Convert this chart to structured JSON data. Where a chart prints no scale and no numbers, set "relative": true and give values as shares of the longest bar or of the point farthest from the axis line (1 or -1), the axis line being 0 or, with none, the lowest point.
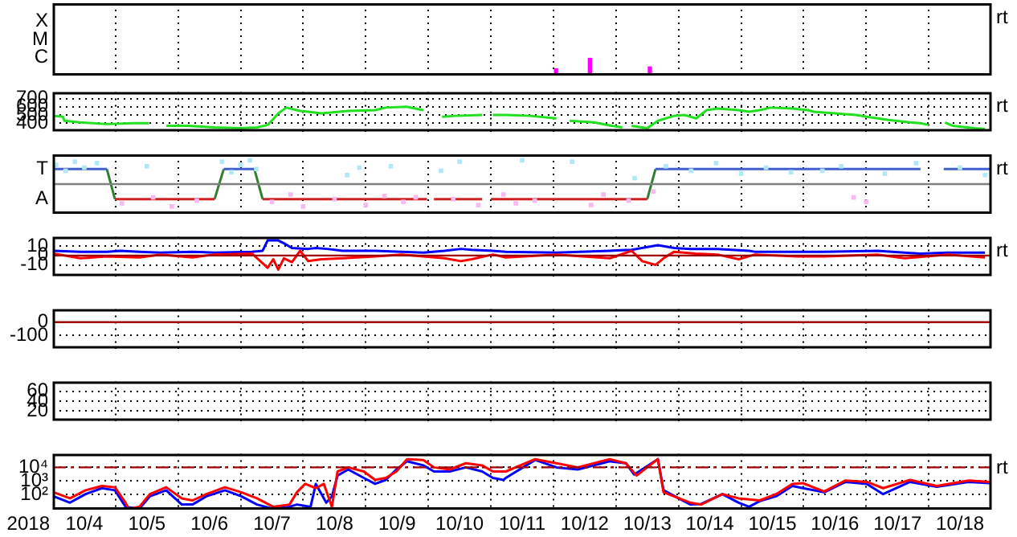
{
  "chart_data": [
    {
      "type": "bar",
      "relative": true,
      "xlim": [
        "2018-10-04",
        "2018-10-19"
      ],
      "xticks": [
        {
          "value": "2018-10-05",
          "label": null
        },
        {
          "value": "2018-10-06",
          "label": null
        },
        {
          "value": "2018-10-07",
          "label": null
        },
        {
          "value": "2018-10-08",
          "label": null
        },
        {
          "value": "2018-10-09",
          "label": null
        },
        {
          "value": "2018-10-10",
          "label": null
        },
        {
          "value": "2018-10-11",
          "label": null
        },
        {
          "value": "2018-10-12",
          "label": null
        },
        {
          "value": "2018-10-13",
          "label": null
        },
        {
          "value": "2018-10-14",
          "label": null
        },
        {
          "value": "2018-10-15",
          "label": null
        },
        {
          "value": "2018-10-16",
          "label": null
        },
        {
          "value": "2018-10-17",
          "label": null
        },
        {
          "value": "2018-10-18",
          "label": null
        }
      ],
      "tick_labels": "y",
      "grid": "x",
      "annotations": [
        "X",
        "M",
        "C",
        "rt"
      ],
      "series": [
        {
          "color": "#ff00ff",
          "x": [
            "2018-10-12T01:00",
            "2018-10-12T14:00",
            "2018-10-13T13:00"
          ],
          "values": [
            0.39,
            1,
            0.5
          ]
        }
      ]
    },
    {
      "type": "line",
      "xlim": [
        "2018-10-04",
        "2018-10-19"
      ],
      "xticks": [
        {
          "value": "2018-10-05",
          "label": null
        },
        {
          "value": "2018-10-06",
          "label": null
        },
        {
          "value": "2018-10-07",
          "label": null
        },
        {
          "value": "2018-10-08",
          "label": null
        },
        {
          "value": "2018-10-09",
          "label": null
        },
        {
          "value": "2018-10-10",
          "label": null
        },
        {
          "value": "2018-10-11",
          "label": null
        },
        {
          "value": "2018-10-12",
          "label": null
        },
        {
          "value": "2018-10-13",
          "label": null
        },
        {
          "value": "2018-10-14",
          "label": null
        },
        {
          "value": "2018-10-15",
          "label": null
        },
        {
          "value": "2018-10-16",
          "label": null
        },
        {
          "value": "2018-10-17",
          "label": null
        },
        {
          "value": "2018-10-18",
          "label": null
        }
      ],
      "ylim": [
        300,
        780
      ],
      "yticks": [
        400,
        500,
        600,
        700
      ],
      "tick_labels": "y",
      "grid": true,
      "annotations": [
        "rt"
      ],
      "series": [
        {
          "color": "#20e020",
          "x": [
            "2018-10-04T00:15",
            "2018-10-04T03:50",
            "2018-10-04T04:20",
            "2018-10-04T10:30",
            "2018-10-04T20:40",
            "2018-10-05T07:00",
            "2018-10-05T12:45",
            "2018-10-05T16:00",
            "2018-10-05T19:30",
            "2018-10-06T03:40",
            "2018-10-06T14:00",
            "2018-10-07T00:15",
            "2018-10-07T06:15",
            "2018-10-07T10:20",
            "2018-10-07T12:30",
            "2018-10-07T14:25",
            "2018-10-07T17:30",
            "2018-10-07T22:50",
            "2018-10-08T01:55",
            "2018-10-08T07:00",
            "2018-10-08T17:15",
            "2018-10-09T03:35",
            "2018-10-09T07:40",
            "2018-10-09T15:50",
            "2018-10-09T22:05",
            "2018-10-10T01:40",
            "2018-10-10T05:15",
            "2018-10-10T10:20",
            "2018-10-10T20:40",
            "2018-10-10T23:45",
            "2018-10-11T00:45",
            "2018-10-11T05:45",
            "2018-10-11T14:55",
            "2018-10-12T01:10",
            "2018-10-12T03:35",
            "2018-10-12T06:15",
            "2018-10-12T15:35",
            "2018-10-12T22:20",
            "2018-10-13T02:25",
            "2018-10-13T04:20",
            "2018-10-13T06:00",
            "2018-10-13T12:00",
            "2018-10-13T16:05",
            "2018-10-13T22:20",
            "2018-10-14T02:25",
            "2018-10-14T06:45",
            "2018-10-14T10:50",
            "2018-10-14T14:55",
            "2018-10-14T23:05",
            "2018-10-15T03:05",
            "2018-10-15T07:10",
            "2018-10-15T11:15",
            "2018-10-15T19:40",
            "2018-10-16T01:40",
            "2018-10-16T03:50",
            "2018-10-16T12:00",
            "2018-10-16T20:10",
            "2018-10-17T00:15",
            "2018-10-17T08:40",
            "2018-10-17T16:50",
            "2018-10-17T20:50",
            "2018-10-18T00:00",
            "2018-10-18T03:05",
            "2018-10-18T06:15",
            "2018-10-18T09:10",
            "2018-10-18T17:30",
            "2018-10-18T21:35"
          ],
          "values": [
            490,
            480,
            430,
            410,
            390,
            400,
            400,
            null,
            370,
            370,
            350,
            340,
            350,
            380,
            450,
            520,
            590,
            550,
            540,
            520,
            550,
            560,
            590,
            600,
            560,
            null,
            480,
            490,
            500,
            null,
            500,
            500,
            490,
            460,
            null,
            430,
            410,
            370,
            350,
            null,
            370,
            340,
            430,
            490,
            500,
            460,
            560,
            580,
            560,
            540,
            560,
            590,
            580,
            560,
            540,
            520,
            500,
            480,
            440,
            410,
            400,
            380,
            null,
            410,
            370,
            340,
            330
          ]
        }
      ]
    },
    {
      "type": "line",
      "relative": true,
      "xlim": [
        "2018-10-04",
        "2018-10-19"
      ],
      "xticks": [
        {
          "value": "2018-10-05",
          "label": null
        },
        {
          "value": "2018-10-06",
          "label": null
        },
        {
          "value": "2018-10-07",
          "label": null
        },
        {
          "value": "2018-10-08",
          "label": null
        },
        {
          "value": "2018-10-09",
          "label": null
        },
        {
          "value": "2018-10-10",
          "label": null
        },
        {
          "value": "2018-10-11",
          "label": null
        },
        {
          "value": "2018-10-12",
          "label": null
        },
        {
          "value": "2018-10-13",
          "label": null
        },
        {
          "value": "2018-10-14",
          "label": null
        },
        {
          "value": "2018-10-15",
          "label": null
        },
        {
          "value": "2018-10-16",
          "label": null
        },
        {
          "value": "2018-10-17",
          "label": null
        },
        {
          "value": "2018-10-18",
          "label": null
        }
      ],
      "tick_labels": "y",
      "grid": "x",
      "annotations": [
        "T",
        "A",
        "rt"
      ],
      "ref_lines": [
        {
          "axis": "y",
          "value": 0,
          "color": "#808080"
        }
      ],
      "series": [
        {
          "type": "scatter",
          "color": "#b0e8f8",
          "x": [
            "2018-10-04T01:10",
            "2018-10-04T04:50",
            "2018-10-04T08:25",
            "2018-10-04T12:00",
            "2018-10-04T16:50",
            "2018-10-05T12:00",
            "2018-10-06T16:50",
            "2018-10-06T20:25",
            "2018-10-07T00:00",
            "2018-10-07T03:35",
            "2018-10-07T06:00",
            "2018-10-08T16:50",
            "2018-10-08T21:35",
            "2018-10-09T09:35",
            "2018-10-10T04:50",
            "2018-10-10T12:00",
            "2018-10-11T12:00",
            "2018-10-12T07:10",
            "2018-10-13T07:10",
            "2018-10-13T19:10",
            "2018-10-14T04:50",
            "2018-10-14T14:25",
            "2018-10-15T00:00",
            "2018-10-15T09:35",
            "2018-10-15T19:10",
            "2018-10-16T07:10",
            "2018-10-16T14:25",
            "2018-10-17T07:10",
            "2018-10-17T19:10",
            "2018-10-18T12:00",
            "2018-10-18T21:35"
          ],
          "values": [
            0.81,
            0.56,
            0.94,
            0.69,
            0.88,
            0.75,
            0.94,
            0.5,
            0.81,
            1,
            0.63,
            0.38,
            0.69,
            0.75,
            0.56,
            0.94,
            1,
            0.94,
            0.25,
            0.75,
            0.56,
            0.88,
            0.44,
            0.69,
            0.5,
            0.56,
            0.75,
            0.44,
            0.88,
            0.69,
            0.38
          ]
        },
        {
          "type": "scatter",
          "color": "#f8b8f0",
          "x": [
            "2018-10-05T02:25",
            "2018-10-05T14:25",
            "2018-10-05T21:35",
            "2018-10-06T07:10",
            "2018-10-07T12:00",
            "2018-10-07T19:10",
            "2018-10-08T00:00",
            "2018-10-08T12:00",
            "2018-10-09T00:00",
            "2018-10-09T07:10",
            "2018-10-09T14:25",
            "2018-10-09T19:10",
            "2018-10-10T09:35",
            "2018-10-10T19:10",
            "2018-10-11T04:50",
            "2018-10-11T09:35",
            "2018-10-11T16:50",
            "2018-10-12T14:25",
            "2018-10-12T19:10",
            "2018-10-13T04:50",
            "2018-10-13T14:25",
            "2018-10-16T19:10",
            "2018-10-17T00:00"
          ],
          "values": [
            -0.81,
            -0.56,
            -0.94,
            -0.69,
            -0.75,
            -0.44,
            -0.94,
            -0.63,
            -0.88,
            -0.5,
            -0.75,
            -0.56,
            -0.63,
            -0.88,
            -0.44,
            -0.81,
            -0.69,
            -0.88,
            -0.44,
            -0.69,
            -0.31,
            -0.56,
            -0.75
          ]
        },
        {
          "color": "#4060d0",
          "x": [
            "2018-10-04T00:00",
            "2018-10-04T20:40",
            "2018-10-04T21:35",
            "2018-10-06T17:30",
            "2018-10-07T05:15",
            "2018-10-07T07:10",
            "2018-10-13T15:10",
            "2018-10-17T20:50",
            "2018-10-18T00:00",
            "2018-10-18T05:45",
            "2018-10-18T23:30"
          ],
          "values": [
            0.63,
            0.63,
            null,
            0.63,
            0.63,
            null,
            0.63,
            0.63,
            null,
            0.63,
            0.63
          ]
        },
        {
          "color": "#d02020",
          "x": [
            "2018-10-04T23:45",
            "2018-10-06T14:00",
            "2018-10-06T14:25",
            "2018-10-07T08:25",
            "2018-10-09T23:30",
            "2018-10-10T00:00",
            "2018-10-10T02:10",
            "2018-10-10T20:40",
            "2018-10-10T22:50",
            "2018-10-11T00:00",
            "2018-10-13T12:00"
          ],
          "values": [
            -0.63,
            -0.63,
            null,
            -0.63,
            -0.63,
            null,
            -0.63,
            -0.63,
            null,
            -0.63,
            -0.63
          ]
        },
        {
          "color": "#308030",
          "x": [
            "2018-10-04T20:40",
            "2018-10-04T23:45",
            "2018-10-05T00:00",
            "2018-10-06T14:00",
            "2018-10-06T17:30",
            "2018-10-06T19:10",
            "2018-10-07T05:15",
            "2018-10-07T08:25",
            "2018-10-07T09:35",
            "2018-10-13T12:00",
            "2018-10-13T15:10"
          ],
          "values": [
            0.63,
            -0.63,
            null,
            -0.63,
            0.63,
            null,
            0.63,
            -0.63,
            null,
            -0.63,
            0.63
          ]
        }
      ]
    },
    {
      "type": "line",
      "xlim": [
        "2018-10-04",
        "2018-10-19"
      ],
      "xticks": [
        {
          "value": "2018-10-05",
          "label": null
        },
        {
          "value": "2018-10-06",
          "label": null
        },
        {
          "value": "2018-10-07",
          "label": null
        },
        {
          "value": "2018-10-08",
          "label": null
        },
        {
          "value": "2018-10-09",
          "label": null
        },
        {
          "value": "2018-10-10",
          "label": null
        },
        {
          "value": "2018-10-11",
          "label": null
        },
        {
          "value": "2018-10-12",
          "label": null
        },
        {
          "value": "2018-10-13",
          "label": null
        },
        {
          "value": "2018-10-14",
          "label": null
        },
        {
          "value": "2018-10-15",
          "label": null
        },
        {
          "value": "2018-10-16",
          "label": null
        },
        {
          "value": "2018-10-17",
          "label": null
        },
        {
          "value": "2018-10-18",
          "label": null
        }
      ],
      "ylim": [
        -22,
        20
      ],
      "yticks": [
        10,
        0,
        -10
      ],
      "tick_labels": "y",
      "grid": true,
      "annotations": [
        "rt"
      ],
      "ref_lines": [
        {
          "axis": "y",
          "value": 0,
          "color": "#a00000"
        }
      ],
      "series": [
        {
          "color": "#ff0000",
          "x": [
            "2018-10-04T00:15",
            "2018-10-04T10:30",
            "2018-10-04T20:40",
            "2018-10-05T09:10",
            "2018-10-05T17:15",
            "2018-10-06T05:30",
            "2018-10-06T14:00",
            "2018-10-07T04:20",
            "2018-10-07T10:20",
            "2018-10-07T12:30",
            "2018-10-07T14:25",
            "2018-10-07T16:35",
            "2018-10-07T19:40",
            "2018-10-07T22:50",
            "2018-10-08T01:55",
            "2018-10-08T07:00",
            "2018-10-08T15:10",
            "2018-10-09T03:35",
            "2018-10-09T13:40",
            "2018-10-09T22:05",
            "2018-10-10T06:15",
            "2018-10-10T12:30",
            "2018-10-10T16:35",
            "2018-10-11T00:45",
            "2018-10-11T05:45",
            "2018-10-12T01:10",
            "2018-10-12T21:35",
            "2018-10-13T06:00",
            "2018-10-13T10:05",
            "2018-10-13T15:10",
            "2018-10-13T18:15",
            "2018-10-13T22:20",
            "2018-10-14T06:30",
            "2018-10-14T14:55",
            "2018-10-14T23:05",
            "2018-10-15T05:15",
            "2018-10-15T21:35",
            "2018-10-16T07:55",
            "2018-10-17T04:20",
            "2018-10-17T14:40",
            "2018-10-18T07:10",
            "2018-10-18T21:35"
          ],
          "values": [
            2,
            -3,
            -1,
            -2,
            1,
            -2,
            1,
            2,
            -13,
            -4,
            -15,
            -3,
            -7,
            5,
            -6,
            -4,
            -3,
            -1,
            1,
            -1,
            -3,
            -6,
            -4,
            1,
            -2,
            1,
            -3,
            5,
            -6,
            -10,
            -3,
            4,
            2,
            1,
            -4,
            1,
            -1,
            -1,
            1,
            -3,
            1,
            -2
          ]
        },
        {
          "color": "#0000ff",
          "x": [
            "2018-10-04T00:15",
            "2018-10-04T10:30",
            "2018-10-04T20:40",
            "2018-10-05T01:55",
            "2018-10-05T09:10",
            "2018-10-05T17:15",
            "2018-10-06T05:30",
            "2018-10-06T14:00",
            "2018-10-07T04:20",
            "2018-10-07T08:25",
            "2018-10-07T10:20",
            "2018-10-07T14:25",
            "2018-10-07T16:35",
            "2018-10-07T19:40",
            "2018-10-08T01:55",
            "2018-10-08T04:50",
            "2018-10-08T09:10",
            "2018-10-08T15:10",
            "2018-10-09T03:35",
            "2018-10-09T13:40",
            "2018-10-09T22:05",
            "2018-10-10T06:15",
            "2018-10-10T12:30",
            "2018-10-10T16:35",
            "2018-10-11T00:45",
            "2018-10-11T05:45",
            "2018-10-12T01:10",
            "2018-10-12T21:35",
            "2018-10-13T06:00",
            "2018-10-13T16:05",
            "2018-10-13T22:20",
            "2018-10-14T04:35",
            "2018-10-14T14:55",
            "2018-10-15T03:05",
            "2018-10-15T05:15",
            "2018-10-15T21:35",
            "2018-10-16T07:55",
            "2018-10-17T04:20",
            "2018-10-17T14:40",
            "2018-10-17T20:50",
            "2018-10-18T07:10",
            "2018-10-18T21:35"
          ],
          "values": [
            5,
            4,
            4,
            5,
            4,
            3,
            4,
            3,
            4,
            5,
            16,
            16,
            13,
            8,
            7,
            8,
            7,
            5,
            5,
            4,
            3,
            5,
            7,
            6,
            5,
            4,
            3,
            5,
            6,
            11,
            8,
            7,
            7,
            5,
            4,
            4,
            4,
            5,
            3,
            2,
            3,
            3
          ]
        }
      ]
    },
    {
      "type": "line",
      "xlim": [
        "2018-10-04",
        "2018-10-19"
      ],
      "xticks": [
        {
          "value": "2018-10-05",
          "label": null
        },
        {
          "value": "2018-10-06",
          "label": null
        },
        {
          "value": "2018-10-07",
          "label": null
        },
        {
          "value": "2018-10-08",
          "label": null
        },
        {
          "value": "2018-10-09",
          "label": null
        },
        {
          "value": "2018-10-10",
          "label": null
        },
        {
          "value": "2018-10-11",
          "label": null
        },
        {
          "value": "2018-10-12",
          "label": null
        },
        {
          "value": "2018-10-13",
          "label": null
        },
        {
          "value": "2018-10-14",
          "label": null
        },
        {
          "value": "2018-10-15",
          "label": null
        },
        {
          "value": "2018-10-16",
          "label": null
        },
        {
          "value": "2018-10-17",
          "label": null
        },
        {
          "value": "2018-10-18",
          "label": null
        }
      ],
      "ylim": [
        -200,
        100
      ],
      "yticks": [
        0,
        -100
      ],
      "tick_labels": "y",
      "grid": true,
      "ref_lines": [
        {
          "axis": "y",
          "value": 0,
          "color": "#a00000"
        }
      ]
    },
    {
      "type": "line",
      "xlim": [
        "2018-10-04",
        "2018-10-19"
      ],
      "xticks": [
        {
          "value": "2018-10-05",
          "label": null
        },
        {
          "value": "2018-10-06",
          "label": null
        },
        {
          "value": "2018-10-07",
          "label": null
        },
        {
          "value": "2018-10-08",
          "label": null
        },
        {
          "value": "2018-10-09",
          "label": null
        },
        {
          "value": "2018-10-10",
          "label": null
        },
        {
          "value": "2018-10-11",
          "label": null
        },
        {
          "value": "2018-10-12",
          "label": null
        },
        {
          "value": "2018-10-13",
          "label": null
        },
        {
          "value": "2018-10-14",
          "label": null
        },
        {
          "value": "2018-10-15",
          "label": null
        },
        {
          "value": "2018-10-16",
          "label": null
        },
        {
          "value": "2018-10-17",
          "label": null
        },
        {
          "value": "2018-10-18",
          "label": null
        }
      ],
      "ylim": [
        0,
        80
      ],
      "yticks": [
        60,
        40,
        20
      ],
      "tick_labels": "y",
      "grid": true
    },
    {
      "type": "line",
      "log": true,
      "xlabel": "2018",
      "xlim": [
        "2018-10-04",
        "2018-10-19"
      ],
      "xticks": [
        {
          "value": "2018-10-04T12:00",
          "label": "10/4"
        },
        {
          "value": "2018-10-05",
          "label": null
        },
        {
          "value": "2018-10-05T12:00",
          "label": "10/5"
        },
        {
          "value": "2018-10-06",
          "label": null
        },
        {
          "value": "2018-10-06T12:00",
          "label": "10/6"
        },
        {
          "value": "2018-10-07",
          "label": null
        },
        {
          "value": "2018-10-07T12:00",
          "label": "10/7"
        },
        {
          "value": "2018-10-08",
          "label": null
        },
        {
          "value": "2018-10-08T12:00",
          "label": "10/8"
        },
        {
          "value": "2018-10-09",
          "label": null
        },
        {
          "value": "2018-10-09T12:00",
          "label": "10/9"
        },
        {
          "value": "2018-10-10",
          "label": null
        },
        {
          "value": "2018-10-10T12:00",
          "label": "10/10"
        },
        {
          "value": "2018-10-11",
          "label": null
        },
        {
          "value": "2018-10-11T12:00",
          "label": "10/11"
        },
        {
          "value": "2018-10-12",
          "label": null
        },
        {
          "value": "2018-10-12T12:00",
          "label": "10/12"
        },
        {
          "value": "2018-10-13",
          "label": null
        },
        {
          "value": "2018-10-13T12:00",
          "label": "10/13"
        },
        {
          "value": "2018-10-14",
          "label": null
        },
        {
          "value": "2018-10-14T12:00",
          "label": "10/14"
        },
        {
          "value": "2018-10-15",
          "label": null
        },
        {
          "value": "2018-10-15T12:00",
          "label": "10/15"
        },
        {
          "value": "2018-10-16",
          "label": null
        },
        {
          "value": "2018-10-16T12:00",
          "label": "10/16"
        },
        {
          "value": "2018-10-17",
          "label": null
        },
        {
          "value": "2018-10-17T12:00",
          "label": "10/17"
        },
        {
          "value": "2018-10-18",
          "label": null
        },
        {
          "value": "2018-10-18T12:00",
          "label": "10/18"
        }
      ],
      "ylim": [
        8,
        100000
      ],
      "yticks": [
        {
          "value": 100,
          "label": "10²"
        },
        {
          "value": 1000,
          "label": "10³"
        },
        {
          "value": 10000,
          "label": "10⁴"
        }
      ],
      "grid": true,
      "annotations": [
        "rt"
      ],
      "ref_lines": [
        {
          "axis": "y",
          "value": 10000,
          "color": "#a00000",
          "line_style": "dashed"
        }
      ],
      "series": [
        {
          "color": "#ff0000",
          "x": [
            "2018-10-04T00:15",
            "2018-10-04T06:30",
            "2018-10-04T12:30",
            "2018-10-04T18:45",
            "2018-10-04T23:45",
            "2018-10-05T03:50",
            "2018-10-05T05:00",
            "2018-10-05T09:10",
            "2018-10-05T13:10",
            "2018-10-05T19:25",
            "2018-10-06T01:25",
            "2018-10-06T05:30",
            "2018-10-06T10:50",
            "2018-10-06T18:00",
            "2018-10-07T00:15",
            "2018-10-07T06:15",
            "2018-10-07T12:30",
            "2018-10-07T18:45",
            "2018-10-07T21:35",
            "2018-10-08T00:45",
            "2018-10-08T04:50",
            "2018-10-08T07:55",
            "2018-10-08T11:00",
            "2018-10-08T13:10",
            "2018-10-08T17:15",
            "2018-10-08T23:15",
            "2018-10-09T03:35",
            "2018-10-09T07:40",
            "2018-10-09T11:45",
            "2018-10-09T15:50",
            "2018-10-09T22:05",
            "2018-10-10T02:10",
            "2018-10-10T08:10",
            "2018-10-10T14:25",
            "2018-10-10T20:40",
            "2018-10-11T00:45",
            "2018-10-11T05:45",
            "2018-10-11T17:00",
            "2018-10-12T01:10",
            "2018-10-12T09:20",
            "2018-10-12T21:35",
            "2018-10-13T03:50",
            "2018-10-13T07:55",
            "2018-10-13T16:05",
            "2018-10-13T18:15",
            "2018-10-14T04:35",
            "2018-10-14T08:40",
            "2018-10-14T16:50",
            "2018-10-14T23:05",
            "2018-10-15T07:10",
            "2018-10-15T13:25",
            "2018-10-15T19:40",
            "2018-10-15T23:45",
            "2018-10-16T07:55",
            "2018-10-16T16:05",
            "2018-10-17T00:15",
            "2018-10-17T06:30",
            "2018-10-17T16:50",
            "2018-10-18T03:05",
            "2018-10-18T15:20",
            "2018-10-18T23:30"
          ],
          "values": [
            150,
            54,
            210,
            440,
            350,
            26,
            9.3,
            13,
            110,
            350,
            54,
            38,
            110,
            350,
            150,
            54,
            13,
            19,
            150,
            620,
            300,
            620,
            13,
            5000,
            10000,
            5000,
            1200,
            1700,
            5000,
            40000,
            35000,
            10000,
            7000,
            20000,
            14000,
            5000,
            5000,
            40000,
            20000,
            10000,
            40000,
            20000,
            2500,
            40000,
            150,
            26,
            19,
            110,
            54,
            38,
            110,
            620,
            700,
            170,
            1100,
            870,
            300,
            1200,
            440,
            1100,
            870
          ]
        },
        {
          "color": "#0000ff",
          "x": [
            "2018-10-04T00:15",
            "2018-10-04T06:30",
            "2018-10-04T12:30",
            "2018-10-04T18:45",
            "2018-10-04T23:45",
            "2018-10-05T03:50",
            "2018-10-05T09:10",
            "2018-10-05T13:10",
            "2018-10-05T19:25",
            "2018-10-06T01:25",
            "2018-10-06T05:30",
            "2018-10-06T10:50",
            "2018-10-06T18:00",
            "2018-10-07T00:15",
            "2018-10-07T06:15",
            "2018-10-07T12:30",
            "2018-10-07T18:45",
            "2018-10-07T21:35",
            "2018-10-08T02:50",
            "2018-10-08T04:50",
            "2018-10-08T08:50",
            "2018-10-08T11:00",
            "2018-10-08T13:10",
            "2018-10-08T17:15",
            "2018-10-08T23:15",
            "2018-10-09T03:35",
            "2018-10-09T07:40",
            "2018-10-09T11:45",
            "2018-10-09T15:50",
            "2018-10-09T22:05",
            "2018-10-10T02:10",
            "2018-10-10T08:10",
            "2018-10-10T14:25",
            "2018-10-10T20:40",
            "2018-10-11T00:45",
            "2018-10-11T04:50",
            "2018-10-11T05:45",
            "2018-10-11T17:00",
            "2018-10-12T01:10",
            "2018-10-12T09:20",
            "2018-10-12T21:35",
            "2018-10-13T03:50",
            "2018-10-13T07:00",
            "2018-10-13T16:05",
            "2018-10-13T18:15",
            "2018-10-14T04:35",
            "2018-10-14T08:40",
            "2018-10-14T16:50",
            "2018-10-14T23:05",
            "2018-10-15T03:05",
            "2018-10-15T07:10",
            "2018-10-15T13:25",
            "2018-10-15T19:40",
            "2018-10-15T23:45",
            "2018-10-16T07:55",
            "2018-10-16T16:05",
            "2018-10-17T00:15",
            "2018-10-17T06:30",
            "2018-10-17T16:50",
            "2018-10-18T03:05",
            "2018-10-18T15:20",
            "2018-10-18T23:30"
          ],
          "values": [
            76,
            26,
            110,
            300,
            210,
            13,
            9.3,
            76,
            210,
            19,
            19,
            76,
            210,
            76,
            19,
            9.3,
            13,
            19,
            13,
            620,
            26,
            76,
            2500,
            7000,
            1700,
            620,
            1200,
            7000,
            28000,
            14000,
            5000,
            5000,
            10000,
            5000,
            1700,
            1200,
            1700,
            35000,
            10000,
            7000,
            28000,
            20000,
            3000,
            40000,
            210,
            19,
            21,
            110,
            26,
            13,
            34,
            76,
            440,
            300,
            150,
            870,
            620,
            110,
            870,
            380,
            870,
            700
          ]
        }
      ]
    }
  ]
}
